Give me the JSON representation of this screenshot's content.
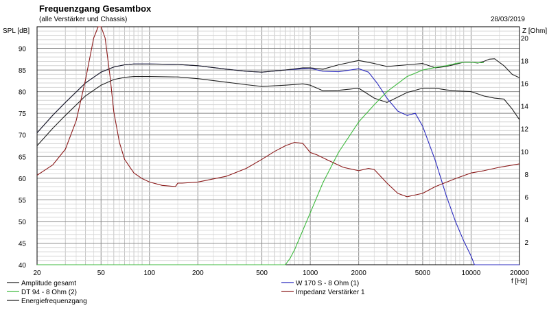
{
  "chart_data": {
    "type": "line",
    "title": "Frequenzgang Gesamtbox",
    "subtitle": "(alle Verstärker und Chassis)",
    "date": "28/03/2019",
    "ylabel": "SPL [dB]",
    "y2label": "Z [Ohm]",
    "xlabel": "f [Hz]",
    "xscale": "log",
    "xlim": [
      20,
      20000
    ],
    "ylim": [
      40,
      95
    ],
    "y2lim": [
      0,
      21
    ],
    "grid": true,
    "x_ticks": [
      {
        "v": 20,
        "label": "20"
      },
      {
        "v": 50,
        "label": "50"
      },
      {
        "v": 100,
        "label": "100"
      },
      {
        "v": 200,
        "label": "200"
      },
      {
        "v": 500,
        "label": "500"
      },
      {
        "v": 1000,
        "label": "1000"
      },
      {
        "v": 2000,
        "label": "2000"
      },
      {
        "v": 5000,
        "label": "5000"
      },
      {
        "v": 10000,
        "label": "10000"
      },
      {
        "v": 20000,
        "label": "20000"
      }
    ],
    "y_ticks": [
      {
        "v": 40,
        "label": "40"
      },
      {
        "v": 45,
        "label": "45"
      },
      {
        "v": 50,
        "label": "50"
      },
      {
        "v": 55,
        "label": "55"
      },
      {
        "v": 60,
        "label": "60"
      },
      {
        "v": 65,
        "label": "65"
      },
      {
        "v": 70,
        "label": "70"
      },
      {
        "v": 75,
        "label": "75"
      },
      {
        "v": 80,
        "label": "80"
      },
      {
        "v": 85,
        "label": "85"
      },
      {
        "v": 90,
        "label": "90"
      }
    ],
    "y2_ticks": [
      {
        "v": 2,
        "label": "2"
      },
      {
        "v": 4,
        "label": "4"
      },
      {
        "v": 6,
        "label": "6"
      },
      {
        "v": 8,
        "label": "8"
      },
      {
        "v": 10,
        "label": "10"
      },
      {
        "v": 12,
        "label": "12"
      },
      {
        "v": 14,
        "label": "14"
      },
      {
        "v": 16,
        "label": "16"
      },
      {
        "v": 18,
        "label": "18"
      },
      {
        "v": 20,
        "label": "20"
      }
    ],
    "series": [
      {
        "name": "Amplitude gesamt",
        "color": "#202020",
        "axis": "left",
        "x": [
          20,
          25,
          30,
          40,
          50,
          60,
          70,
          80,
          100,
          150,
          200,
          300,
          400,
          500,
          700,
          900,
          1000,
          1200,
          1500,
          2000,
          2500,
          3000,
          4000,
          5000,
          6000,
          7000,
          8000,
          10000,
          12000,
          14000,
          16000,
          18000,
          20000
        ],
        "y": [
          67.5,
          71.5,
          74.5,
          79,
          81.5,
          82.8,
          83.3,
          83.5,
          83.5,
          83.4,
          83,
          82.2,
          81.6,
          81.2,
          81.5,
          81.8,
          81.5,
          80.2,
          80.3,
          80.8,
          78.5,
          77.5,
          79.8,
          80.8,
          80.8,
          80.4,
          80.2,
          80,
          79,
          78.5,
          78.3,
          76,
          73.5
        ]
      },
      {
        "name": "W 170 S - 8 Ohm (1)",
        "color": "#2b2bbf",
        "axis": "left",
        "x": [
          20,
          25,
          30,
          40,
          50,
          60,
          70,
          80,
          100,
          150,
          200,
          300,
          400,
          500,
          700,
          900,
          1000,
          1200,
          1500,
          2000,
          2300,
          2600,
          3000,
          3500,
          4000,
          4500,
          5000,
          6000,
          7000,
          8000,
          9000,
          10000,
          10500,
          12000,
          15000,
          20000
        ],
        "y": [
          70.5,
          74.5,
          77.5,
          82,
          84.5,
          85.7,
          86.2,
          86.4,
          86.4,
          86.3,
          86,
          85.2,
          84.7,
          84.5,
          85,
          85.3,
          85.4,
          84.7,
          84.6,
          85.3,
          84.5,
          82,
          78.5,
          75.5,
          74.5,
          75,
          72,
          64,
          56,
          50,
          45.5,
          42,
          40,
          40,
          40,
          40
        ]
      },
      {
        "name": "Energiefrequenzgang",
        "color": "#202020",
        "axis": "left",
        "x": [
          20,
          25,
          30,
          40,
          50,
          60,
          70,
          80,
          100,
          150,
          200,
          300,
          400,
          500,
          700,
          900,
          1000,
          1200,
          1500,
          2000,
          2500,
          3000,
          4000,
          5000,
          6000,
          7000,
          8000,
          9000,
          10000,
          11000,
          12000,
          13000,
          14000,
          16000,
          18000,
          20000
        ],
        "y": [
          70.5,
          74.5,
          77.5,
          82,
          84.5,
          85.7,
          86.2,
          86.4,
          86.4,
          86.3,
          86,
          85.2,
          84.7,
          84.5,
          85,
          85.5,
          85.5,
          85.2,
          86.2,
          87.2,
          86.5,
          85.8,
          86.2,
          86.5,
          85.5,
          85.8,
          86.3,
          86.8,
          86.8,
          86.6,
          87,
          87.5,
          87.6,
          86,
          84,
          83.2
        ]
      },
      {
        "name": "DT 94 - 8 Ohm (2)",
        "color": "#3cb93c",
        "axis": "left",
        "x": [
          20,
          100,
          500,
          700,
          750,
          800,
          900,
          1000,
          1200,
          1500,
          2000,
          2500,
          3000,
          4000,
          5000,
          6000,
          7000,
          8000,
          9000,
          10000,
          11000,
          12000
        ],
        "y": [
          40,
          40,
          40,
          40,
          41.5,
          43.5,
          48,
          52,
          59,
          66,
          73,
          77,
          80,
          83.5,
          85,
          85.6,
          86,
          86.5,
          86.8,
          86.8,
          86.7,
          86.7
        ]
      },
      {
        "name": "Impedanz Verstärker 1",
        "color": "#8b1a1a",
        "axis": "right",
        "x": [
          20,
          25,
          30,
          35,
          40,
          45,
          48,
          50,
          53,
          57,
          60,
          65,
          70,
          80,
          90,
          100,
          120,
          145,
          150,
          160,
          200,
          300,
          400,
          500,
          600,
          700,
          800,
          900,
          1000,
          1100,
          1300,
          1600,
          2000,
          2300,
          2500,
          3000,
          3500,
          4000,
          5000,
          6000,
          8000,
          10000,
          12000,
          15000,
          20000
        ],
        "y": [
          7.9,
          8.8,
          10.2,
          12.7,
          16.3,
          20,
          21,
          21,
          20,
          16.5,
          13.5,
          10.8,
          9.3,
          8.1,
          7.6,
          7.3,
          7,
          6.9,
          7.2,
          7.2,
          7.3,
          7.8,
          8.5,
          9.3,
          10,
          10.5,
          10.8,
          10.7,
          9.9,
          9.7,
          9.2,
          8.6,
          8.3,
          8.5,
          8.4,
          7.2,
          6.3,
          6,
          6.3,
          6.9,
          7.6,
          8.1,
          8.3,
          8.6,
          8.9
        ]
      }
    ],
    "legend": {
      "placement": "bottom",
      "entries": [
        {
          "name": "Amplitude gesamt",
          "color": "#202020"
        },
        {
          "name": "W 170 S - 8 Ohm (1)",
          "color": "#2b2bbf"
        },
        {
          "name": "DT 94 - 8 Ohm (2)",
          "color": "#3cb93c"
        },
        {
          "name": "Impedanz Verstärker 1",
          "color": "#8b1a1a"
        },
        {
          "name": "Energiefrequenzgang",
          "color": "#202020"
        }
      ]
    }
  }
}
